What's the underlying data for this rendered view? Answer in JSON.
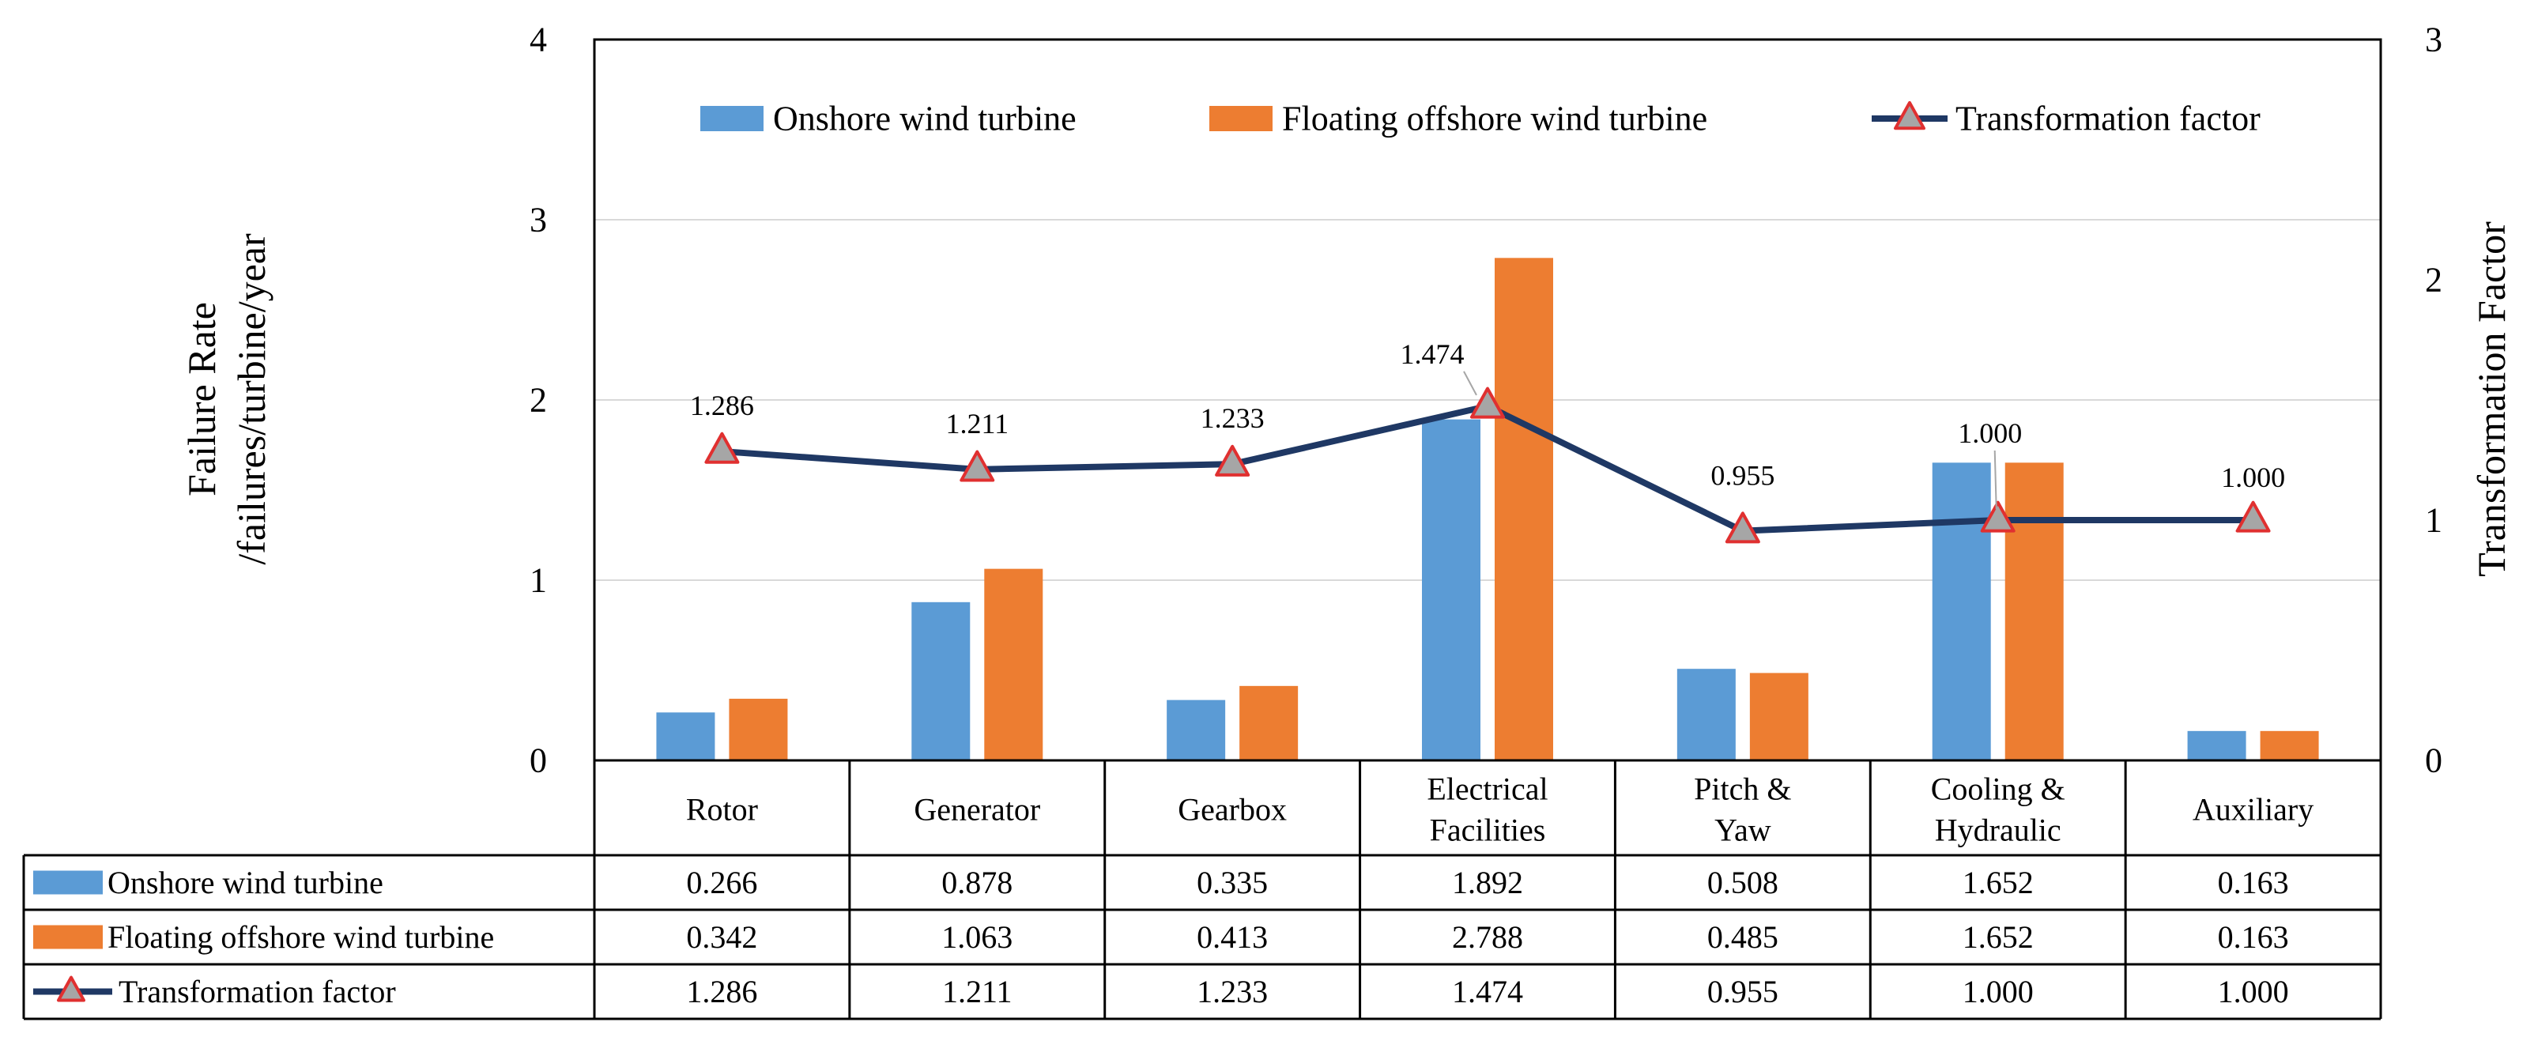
{
  "chart_data": {
    "type": "bar",
    "categories": [
      "Rotor",
      "Generator",
      "Gearbox",
      "Electrical Facilities",
      "Pitch & Yaw",
      "Cooling & Hydraulic",
      "Auxiliary"
    ],
    "category_lines": [
      [
        "Rotor"
      ],
      [
        "Generator"
      ],
      [
        "Gearbox"
      ],
      [
        "Electrical",
        "Facilities"
      ],
      [
        "Pitch &",
        "Yaw"
      ],
      [
        "Cooling &",
        "Hydraulic"
      ],
      [
        "Auxiliary"
      ]
    ],
    "series": [
      {
        "name": "Onshore wind turbine",
        "type": "bar",
        "axis": "left",
        "color": "#5b9bd5",
        "values": [
          0.266,
          0.878,
          0.335,
          1.892,
          0.508,
          1.652,
          0.163
        ],
        "table_values": [
          "0.266",
          "0.878",
          "0.335",
          "1.892",
          "0.508",
          "1.652",
          "0.163"
        ]
      },
      {
        "name": "Floating offshore wind turbine",
        "type": "bar",
        "axis": "left",
        "color": "#ed7d31",
        "values": [
          0.342,
          1.063,
          0.413,
          2.788,
          0.485,
          1.652,
          0.163
        ],
        "table_values": [
          "0.342",
          "1.063",
          "0.413",
          "2.788",
          "0.485",
          "1.652",
          "0.163"
        ]
      },
      {
        "name": "Transformation factor",
        "type": "line",
        "axis": "right",
        "color": "#1f3864",
        "marker_fill": "#a6a6a6",
        "marker_stroke": "#e03030",
        "values": [
          1.286,
          1.211,
          1.233,
          1.474,
          0.955,
          1.0,
          1.0
        ],
        "table_values": [
          "1.286",
          "1.211",
          "1.233",
          "1.474",
          "0.955",
          "1.000",
          "1.000"
        ],
        "data_labels": [
          "1.286",
          "1.211",
          "1.233",
          "1.474",
          "0.955",
          "1.000",
          "1.000"
        ]
      }
    ],
    "ylabel_lines": [
      "Failure Rate",
      "/failures/turbine/year"
    ],
    "y2label": "Transformation  Factor",
    "ylim": [
      0,
      4
    ],
    "yticks": [
      "0",
      "1",
      "2",
      "3",
      "4"
    ],
    "y2lim": [
      0,
      3
    ],
    "y2ticks": [
      "0",
      "1",
      "2",
      "3"
    ],
    "grid": true,
    "legend_position": "top-right",
    "data_table": true
  }
}
